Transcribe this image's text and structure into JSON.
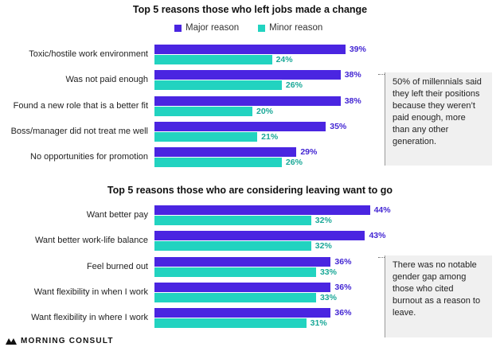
{
  "chart_data": [
    {
      "type": "bar",
      "orientation": "horizontal",
      "title": "Top 5 reasons those who left jobs made a change",
      "categories": [
        "Toxic/hostile work environment",
        "Was not paid enough",
        "Found a new role that is a better fit",
        "Boss/manager did not treat me well",
        "No opportunities for promotion"
      ],
      "series": [
        {
          "name": "Major reason",
          "values": [
            39,
            38,
            38,
            35,
            29
          ],
          "labels": [
            "39%",
            "38%",
            "38%",
            "35%",
            "29%"
          ]
        },
        {
          "name": "Minor reason",
          "values": [
            24,
            26,
            20,
            21,
            26
          ],
          "labels": [
            "24%",
            "26%",
            "20%",
            "21%",
            "26%"
          ]
        }
      ],
      "unit": "%",
      "xlim": [
        0,
        50
      ],
      "callout": "50% of millennials said they left their positions because they weren’t paid enough, more than any other generation."
    },
    {
      "type": "bar",
      "orientation": "horizontal",
      "title": "Top 5 reasons those who are considering leaving want to go",
      "categories": [
        "Want better pay",
        "Want better work-life balance",
        "Feel burned out",
        "Want flexibility in when I work",
        "Want flexibility in where I work"
      ],
      "series": [
        {
          "name": "Major reason",
          "values": [
            44,
            43,
            36,
            36,
            36
          ],
          "labels": [
            "44%",
            "43%",
            "36%",
            "36%",
            "36%"
          ]
        },
        {
          "name": "Minor reason",
          "values": [
            32,
            32,
            33,
            33,
            31
          ],
          "labels": [
            "32%",
            "32%",
            "33%",
            "33%",
            "31%"
          ]
        }
      ],
      "unit": "%",
      "xlim": [
        0,
        50
      ],
      "callout": "There was no notable gender gap among those who cited burnout as a reason to leave."
    }
  ],
  "legend": {
    "major_label": "Major reason",
    "minor_label": "Minor reason"
  },
  "colors": {
    "major": "#4a25e1",
    "minor": "#22d3c0",
    "major_text": "#4326d3",
    "minor_text": "#1aa898"
  },
  "footer": {
    "brand": "MORNING CONSULT",
    "logo_icon": "morning-consult-logo-icon"
  }
}
